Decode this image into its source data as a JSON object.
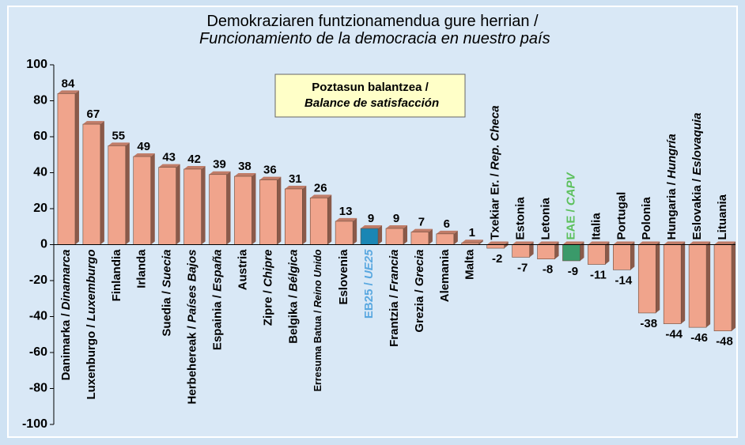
{
  "chart_data": {
    "type": "bar",
    "title": "Demokraziaren funtzionamendua gure herrian / Funcionamiento de la democracia en nuestro país",
    "annotation": "Poztasun balantzea / Balance de satisfacción",
    "categories": [
      "Danimarka / Dinamarca",
      "Luxenburgo / Luxemburgo",
      "Finlandia",
      "Irlanda",
      "Suedia / Suecia",
      "Herbehereak / Países Bajos",
      "Espainia / España",
      "Austria",
      "Zipre / Chipre",
      "Belgika / Bélgica",
      "Erresuma Batua / Reino Unido",
      "Eslovenia",
      "EB25 / UE25",
      "Frantzia / Francia",
      "Grezia / Grecia",
      "Alemania",
      "Malta",
      "Txekiar Er. / Rep. Checa",
      "Estonia",
      "Letonia",
      "EAE / CAPV",
      "Italia",
      "Portugal",
      "Polonia",
      "Hungaria / Hungría",
      "Eslovakia / Eslovaquia",
      "Lituania"
    ],
    "values": [
      84,
      67,
      55,
      49,
      43,
      42,
      39,
      38,
      36,
      31,
      26,
      13,
      9,
      9,
      7,
      6,
      1,
      -2,
      -7,
      -8,
      -9,
      -11,
      -14,
      -38,
      -44,
      -46,
      -48
    ],
    "colors": [
      "#f0a48c",
      "#f0a48c",
      "#f0a48c",
      "#f0a48c",
      "#f0a48c",
      "#f0a48c",
      "#f0a48c",
      "#f0a48c",
      "#f0a48c",
      "#f0a48c",
      "#f0a48c",
      "#f0a48c",
      "#1a86b4",
      "#f0a48c",
      "#f0a48c",
      "#f0a48c",
      "#f0a48c",
      "#f0a48c",
      "#f0a48c",
      "#f0a48c",
      "#3a9a6a",
      "#f0a48c",
      "#f0a48c",
      "#f0a48c",
      "#f0a48c",
      "#f0a48c",
      "#f0a48c"
    ],
    "label_colors": [
      "#000000",
      "#000000",
      "#000000",
      "#000000",
      "#000000",
      "#000000",
      "#000000",
      "#000000",
      "#000000",
      "#000000",
      "#000000",
      "#000000",
      "#5aa8e0",
      "#000000",
      "#000000",
      "#000000",
      "#000000",
      "#000000",
      "#000000",
      "#000000",
      "#5cc05c",
      "#000000",
      "#000000",
      "#000000",
      "#000000",
      "#000000",
      "#000000"
    ],
    "ylim": [
      -100,
      100
    ],
    "yticks": [
      -100,
      -80,
      -60,
      -40,
      -20,
      0,
      20,
      40,
      60,
      80,
      100
    ],
    "grid": false
  }
}
